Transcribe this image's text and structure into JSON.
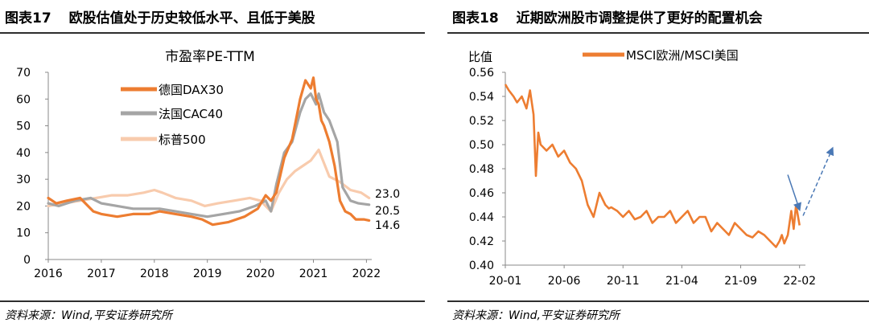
{
  "left_panel": {
    "figure_label": "图表17",
    "title": "欧股估值处于历史较低水平、且低于美股",
    "source": "资料来源：Wind,平安证券研究所"
  },
  "right_panel": {
    "figure_label": "图表18",
    "title": "近期欧洲股市调整提供了更好的配置机会",
    "source": "资料来源：Wind,平安证券研究所"
  },
  "colors": {
    "dax": "#ED7D31",
    "cac": "#A5A5A5",
    "sp": "#F8CBAD",
    "ratio": "#ED7D31",
    "arrow": "#4A78B5",
    "rule": "#2e2e2e"
  },
  "chart_data": [
    {
      "type": "line",
      "title": "市盈率PE-TTM",
      "xlabel": "",
      "ylabel": "",
      "xlim": [
        2016,
        2022.1
      ],
      "ylim": [
        0,
        70
      ],
      "yticks": [
        0,
        10,
        20,
        30,
        40,
        50,
        60,
        70
      ],
      "xticks": [
        2016,
        2017,
        2018,
        2019,
        2020,
        2021,
        2022
      ],
      "grid": false,
      "legend_position": "top-left",
      "series": [
        {
          "name": "德国DAX30",
          "end_label": "14.6",
          "x": [
            2016,
            2016.15,
            2016.35,
            2016.6,
            2016.85,
            2017,
            2017.3,
            2017.6,
            2017.9,
            2018.1,
            2018.4,
            2018.7,
            2018.9,
            2019.1,
            2019.4,
            2019.7,
            2019.95,
            2020.1,
            2020.2,
            2020.3,
            2020.45,
            2020.6,
            2020.75,
            2020.85,
            2020.95,
            2021.0,
            2021.05,
            2021.1,
            2021.15,
            2021.2,
            2021.3,
            2021.4,
            2021.5,
            2021.6,
            2021.7,
            2021.8,
            2021.95,
            2022.05
          ],
          "y": [
            23,
            21,
            22,
            23,
            18,
            17,
            16,
            17,
            17,
            18,
            17,
            16,
            15,
            13,
            14,
            16,
            19,
            24,
            22,
            25,
            38,
            45,
            60,
            67,
            64,
            68,
            60,
            58,
            52,
            50,
            44,
            35,
            22,
            18,
            17,
            15,
            15,
            14.6
          ]
        },
        {
          "name": "法国CAC40",
          "end_label": "20.5",
          "x": [
            2016,
            2016.2,
            2016.5,
            2016.8,
            2017,
            2017.3,
            2017.6,
            2017.9,
            2018.1,
            2018.4,
            2018.7,
            2019,
            2019.3,
            2019.6,
            2019.9,
            2020.1,
            2020.2,
            2020.3,
            2020.45,
            2020.6,
            2020.75,
            2020.85,
            2020.95,
            2021.05,
            2021.1,
            2021.2,
            2021.3,
            2021.45,
            2021.55,
            2021.7,
            2021.85,
            2022.05
          ],
          "y": [
            21,
            20,
            22,
            23,
            21,
            20,
            19,
            19,
            19,
            18,
            17,
            16,
            17,
            18,
            20,
            22,
            18,
            28,
            40,
            44,
            55,
            60,
            62,
            58,
            62,
            55,
            52,
            44,
            27,
            22,
            21,
            20.5
          ]
        },
        {
          "name": "标普500",
          "end_label": "23.0",
          "x": [
            2016,
            2016.3,
            2016.6,
            2016.9,
            2017.2,
            2017.5,
            2017.8,
            2018.0,
            2018.15,
            2018.4,
            2018.7,
            2018.95,
            2019.2,
            2019.5,
            2019.8,
            2020.0,
            2020.2,
            2020.35,
            2020.5,
            2020.65,
            2020.8,
            2020.95,
            2021.1,
            2021.3,
            2021.5,
            2021.7,
            2021.9,
            2022.05
          ],
          "y": [
            20,
            21,
            22,
            23,
            24,
            24,
            25,
            26,
            25,
            23,
            22,
            20,
            21,
            22,
            23,
            22,
            18,
            25,
            30,
            33,
            35,
            37,
            41,
            31,
            29,
            26,
            25,
            23
          ]
        }
      ]
    },
    {
      "type": "line",
      "title": "",
      "xlabel": "",
      "ylabel": "比值",
      "xlim": [
        0,
        25.5
      ],
      "ylim": [
        0.4,
        0.56
      ],
      "yticks": [
        "0.40",
        "0.42",
        "0.44",
        "0.46",
        "0.48",
        "0.50",
        "0.52",
        "0.54",
        "0.56"
      ],
      "xticks": [
        {
          "label": "20-01",
          "x": 0
        },
        {
          "label": "20-06",
          "x": 5
        },
        {
          "label": "20-11",
          "x": 10
        },
        {
          "label": "21-04",
          "x": 15
        },
        {
          "label": "21-09",
          "x": 20
        },
        {
          "label": "22-02",
          "x": 25
        }
      ],
      "grid": false,
      "legend_position": "top",
      "series": [
        {
          "name": "MSCI欧洲/MSCI美国",
          "x": [
            0,
            0.3,
            0.7,
            1.0,
            1.4,
            1.8,
            2.1,
            2.4,
            2.6,
            2.8,
            3.0,
            3.5,
            4.0,
            4.5,
            5.0,
            5.5,
            6.0,
            6.5,
            7.0,
            7.5,
            8.0,
            8.5,
            8.8,
            9.0,
            9.5,
            10.0,
            10.5,
            11.0,
            11.5,
            12.0,
            12.5,
            13.0,
            13.5,
            14.0,
            14.5,
            15.0,
            15.5,
            16.0,
            16.5,
            17.0,
            17.5,
            18.0,
            18.5,
            19.0,
            19.5,
            20.0,
            20.5,
            21.0,
            21.5,
            22.0,
            22.5,
            23.0,
            23.3,
            23.5,
            23.7,
            24.0,
            24.3,
            24.5,
            24.7,
            25.0
          ],
          "y": [
            0.55,
            0.545,
            0.54,
            0.535,
            0.54,
            0.53,
            0.545,
            0.525,
            0.474,
            0.51,
            0.5,
            0.495,
            0.5,
            0.49,
            0.495,
            0.485,
            0.48,
            0.47,
            0.45,
            0.44,
            0.46,
            0.45,
            0.447,
            0.448,
            0.445,
            0.44,
            0.445,
            0.438,
            0.44,
            0.445,
            0.435,
            0.44,
            0.44,
            0.445,
            0.435,
            0.44,
            0.445,
            0.435,
            0.44,
            0.44,
            0.428,
            0.435,
            0.43,
            0.425,
            0.435,
            0.43,
            0.425,
            0.423,
            0.428,
            0.425,
            0.42,
            0.415,
            0.42,
            0.425,
            0.418,
            0.425,
            0.445,
            0.43,
            0.45,
            0.433
          ]
        }
      ],
      "annotations": [
        {
          "type": "arrow",
          "style": "solid",
          "from": [
            24.0,
            0.475
          ],
          "to": [
            25.0,
            0.446
          ]
        },
        {
          "type": "arrow",
          "style": "dashed",
          "from": [
            25.3,
            0.441
          ],
          "to": [
            27.8,
            0.497
          ]
        }
      ]
    }
  ]
}
